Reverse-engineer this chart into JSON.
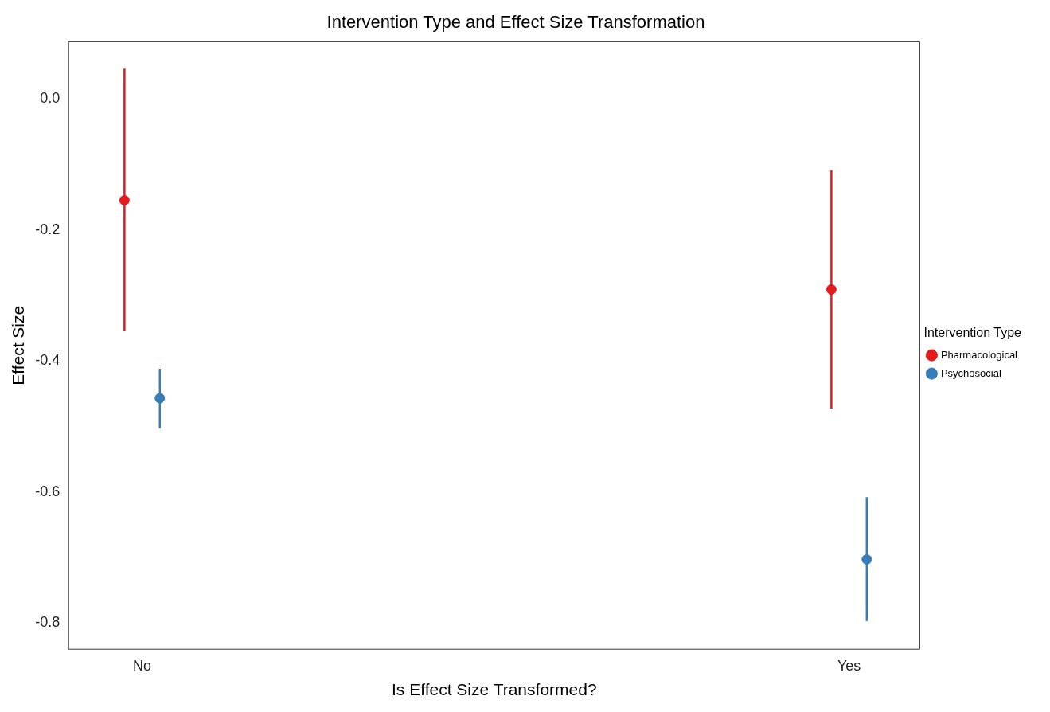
{
  "chart_data": {
    "type": "scatter",
    "title": "Intervention Type and Effect Size Transformation",
    "xlabel": "Is Effect Size Transformed?",
    "ylabel": "Effect Size",
    "legend_title": "Intervention Type",
    "categories": [
      "No",
      "Yes"
    ],
    "series": [
      {
        "name": "Pharmacological",
        "color": "#e41a1c",
        "x": [
          "No",
          "Yes"
        ],
        "values": [
          -0.155,
          -0.291
        ],
        "errors": [
          [
            -0.355,
            0.046
          ],
          [
            -0.473,
            -0.109
          ]
        ]
      },
      {
        "name": "Psychosocial",
        "color": "#377eb8",
        "x": [
          "No",
          "Yes"
        ],
        "values": [
          -0.457,
          -0.703
        ],
        "errors": [
          [
            -0.503,
            -0.412
          ],
          [
            -0.797,
            -0.608
          ]
        ]
      }
    ],
    "ylim": [
      -0.84,
      0.087
    ],
    "yticks": [
      {
        "value": 0,
        "label": "0.0"
      },
      -0.2,
      -0.4,
      -0.6,
      -0.8
    ],
    "grid": false,
    "legend": "right",
    "marker": "circle"
  }
}
